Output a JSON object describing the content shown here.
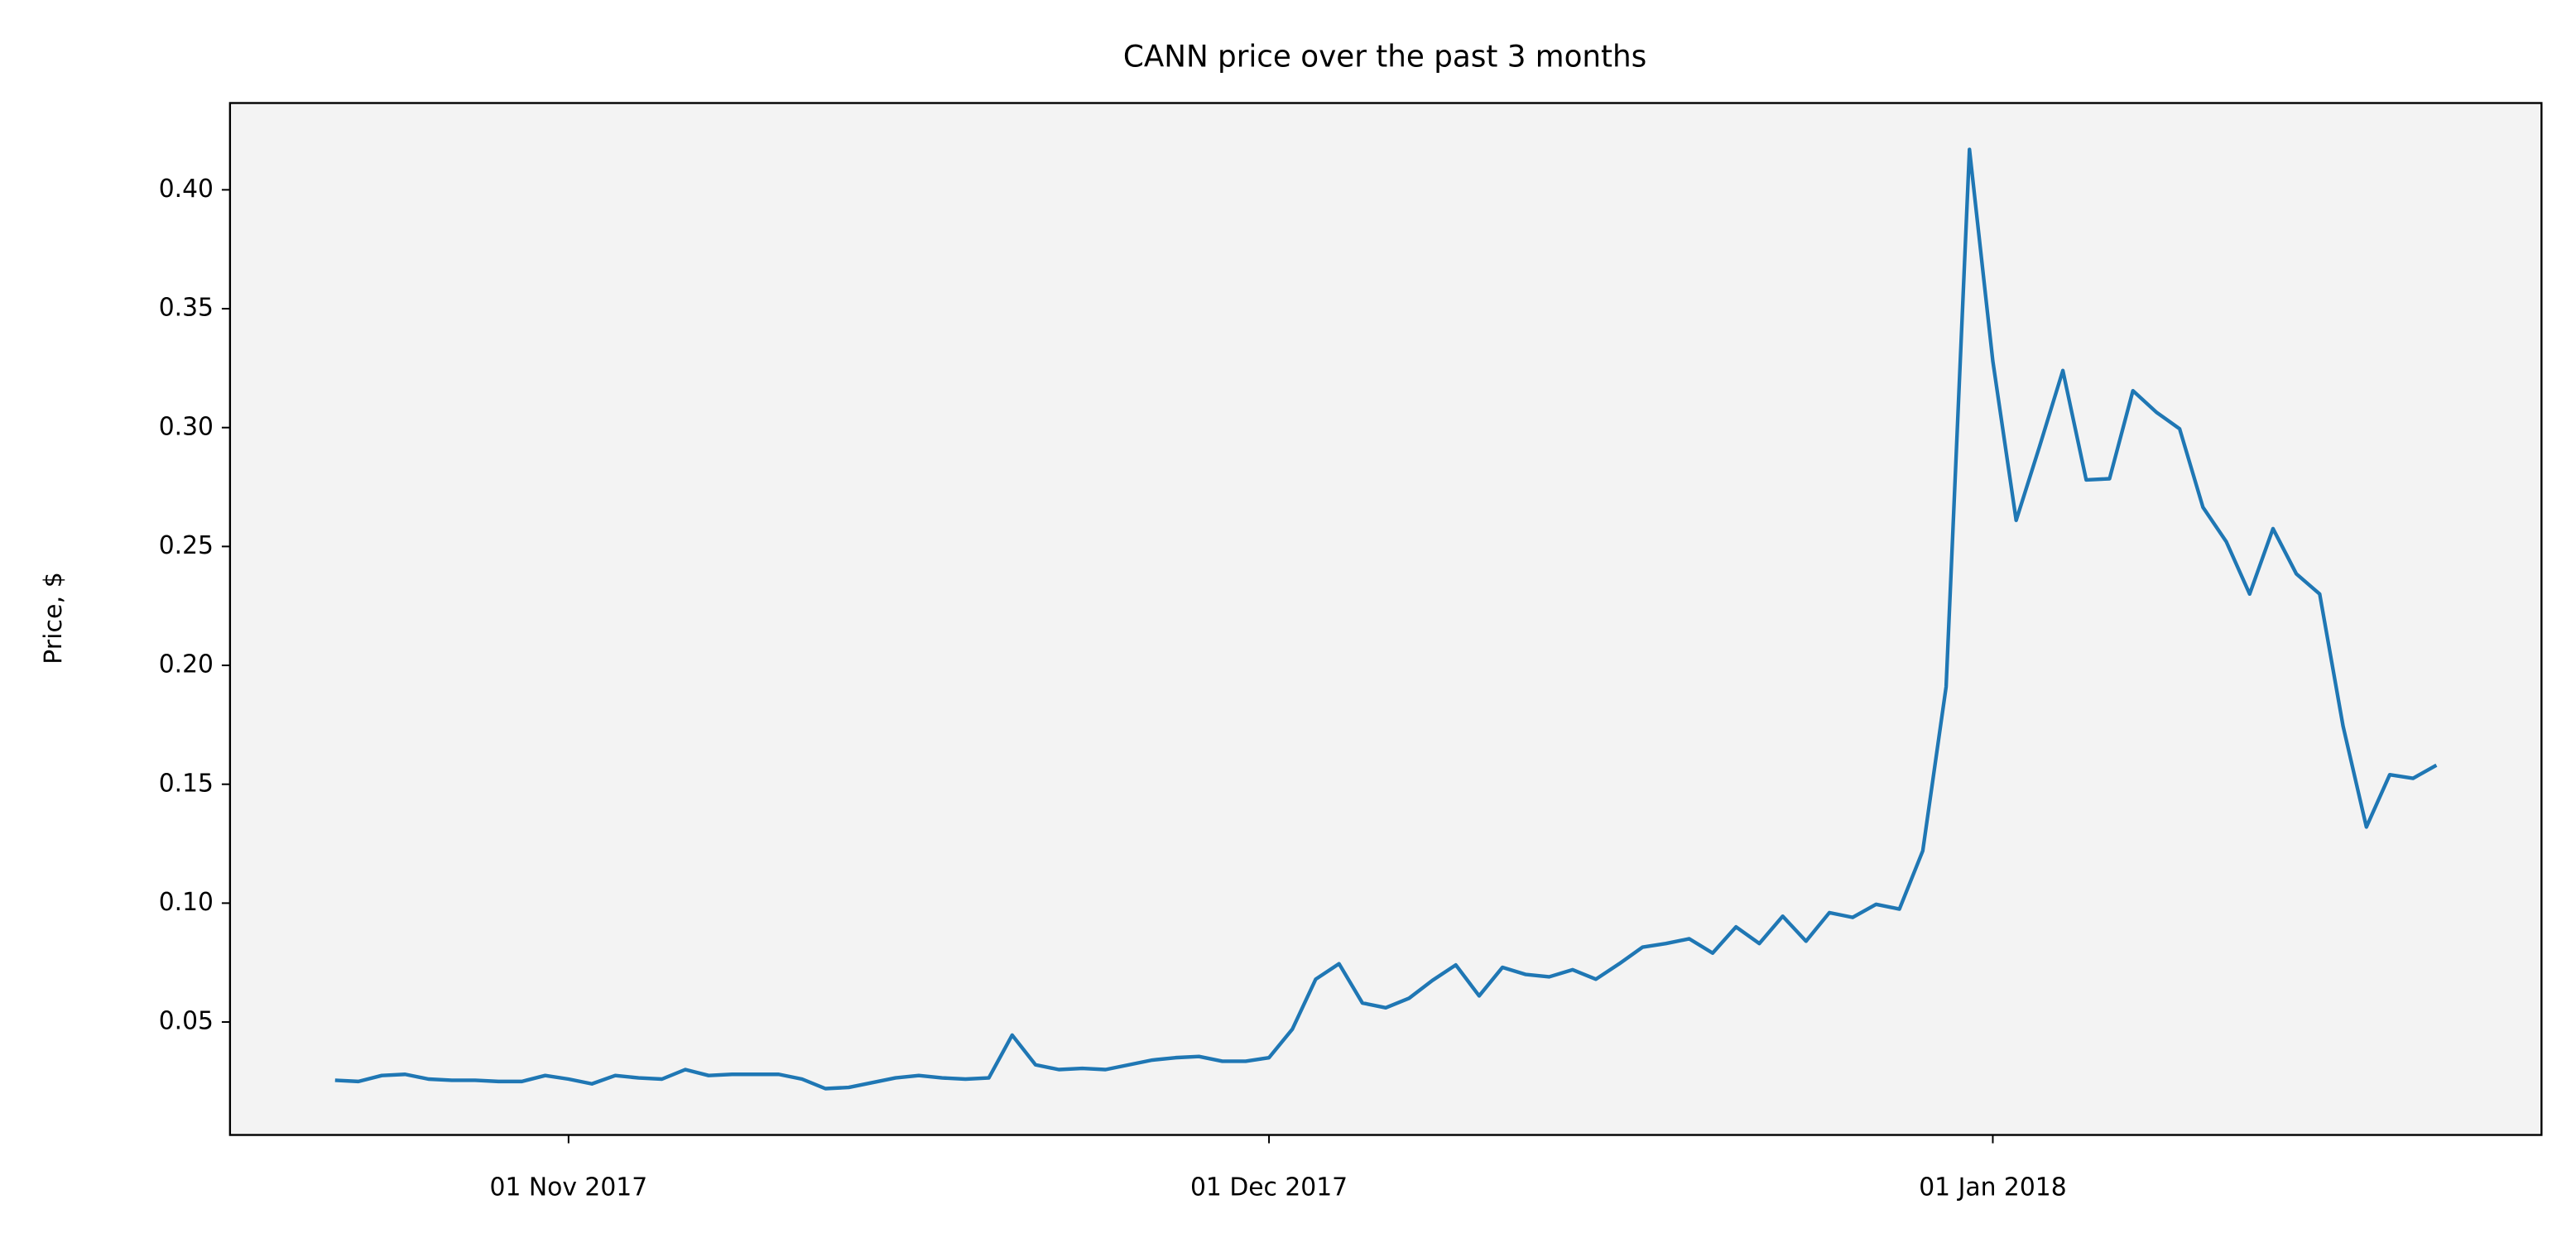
{
  "chart_data": {
    "type": "line",
    "title": "CANN price over the past 3 months",
    "y_label": "Price, $",
    "x": [
      "2017-10-22",
      "2017-10-23",
      "2017-10-24",
      "2017-10-25",
      "2017-10-26",
      "2017-10-27",
      "2017-10-28",
      "2017-10-29",
      "2017-10-30",
      "2017-10-31",
      "2017-11-01",
      "2017-11-02",
      "2017-11-03",
      "2017-11-04",
      "2017-11-05",
      "2017-11-06",
      "2017-11-07",
      "2017-11-08",
      "2017-11-09",
      "2017-11-10",
      "2017-11-11",
      "2017-11-12",
      "2017-11-13",
      "2017-11-14",
      "2017-11-15",
      "2017-11-16",
      "2017-11-17",
      "2017-11-18",
      "2017-11-19",
      "2017-11-20",
      "2017-11-21",
      "2017-11-22",
      "2017-11-23",
      "2017-11-24",
      "2017-11-25",
      "2017-11-26",
      "2017-11-27",
      "2017-11-28",
      "2017-11-29",
      "2017-11-30",
      "2017-12-01",
      "2017-12-02",
      "2017-12-03",
      "2017-12-04",
      "2017-12-05",
      "2017-12-06",
      "2017-12-07",
      "2017-12-08",
      "2017-12-09",
      "2017-12-10",
      "2017-12-11",
      "2017-12-12",
      "2017-12-13",
      "2017-12-14",
      "2017-12-15",
      "2017-12-16",
      "2017-12-17",
      "2017-12-18",
      "2017-12-19",
      "2017-12-20",
      "2017-12-21",
      "2017-12-22",
      "2017-12-23",
      "2017-12-24",
      "2017-12-25",
      "2017-12-26",
      "2017-12-27",
      "2017-12-28",
      "2017-12-29",
      "2017-12-30",
      "2017-12-31",
      "2018-01-01",
      "2018-01-02",
      "2018-01-03",
      "2018-01-04",
      "2018-01-05",
      "2018-01-06",
      "2018-01-07",
      "2018-01-08",
      "2018-01-09",
      "2018-01-10",
      "2018-01-11",
      "2018-01-12",
      "2018-01-13",
      "2018-01-14",
      "2018-01-15",
      "2018-01-16",
      "2018-01-17",
      "2018-01-18",
      "2018-01-19",
      "2018-01-20"
    ],
    "series": [
      {
        "color": "#1f77b4",
        "values": [
          0.0255,
          0.025,
          0.0275,
          0.028,
          0.026,
          0.0255,
          0.0255,
          0.025,
          0.025,
          0.0275,
          0.026,
          0.024,
          0.0275,
          0.0265,
          0.026,
          0.03,
          0.0275,
          0.028,
          0.028,
          0.028,
          0.026,
          0.022,
          0.0225,
          0.0245,
          0.0265,
          0.0275,
          0.0265,
          0.026,
          0.0265,
          0.0445,
          0.032,
          0.03,
          0.0305,
          0.03,
          0.032,
          0.034,
          0.035,
          0.0355,
          0.0335,
          0.0335,
          0.035,
          0.047,
          0.068,
          0.0745,
          0.058,
          0.056,
          0.06,
          0.0675,
          0.074,
          0.061,
          0.073,
          0.07,
          0.069,
          0.072,
          0.068,
          0.0745,
          0.0815,
          0.083,
          0.085,
          0.079,
          0.09,
          0.083,
          0.0945,
          0.084,
          0.096,
          0.094,
          0.0995,
          0.0975,
          0.122,
          0.191,
          0.417,
          0.328,
          0.261,
          0.292,
          0.324,
          0.278,
          0.2785,
          0.3155,
          0.3065,
          0.2995,
          0.2665,
          0.252,
          0.23,
          0.2575,
          0.2385,
          0.23,
          0.1745,
          0.132,
          0.154,
          0.1525,
          0.158
        ]
      }
    ],
    "xlim": [
      "2017-10-17T12:00:00Z",
      "2018-01-24T12:00:00Z"
    ],
    "xticks": [
      {
        "value": "2017-11-01",
        "label": "01 Nov 2017"
      },
      {
        "value": "2017-12-01",
        "label": "01 Dec 2017"
      },
      {
        "value": "2018-01-01",
        "label": "01 Jan 2018"
      }
    ],
    "ylim": [
      0.0025,
      0.4365
    ],
    "yticks": [
      0.05,
      {
        "value": 0.1,
        "label": "0.10"
      },
      0.15,
      {
        "value": 0.2,
        "label": "0.20"
      },
      0.25,
      {
        "value": 0.3,
        "label": "0.30"
      },
      0.35,
      {
        "value": 0.4,
        "label": "0.40"
      }
    ],
    "plot_background": "#f3f3f3"
  }
}
